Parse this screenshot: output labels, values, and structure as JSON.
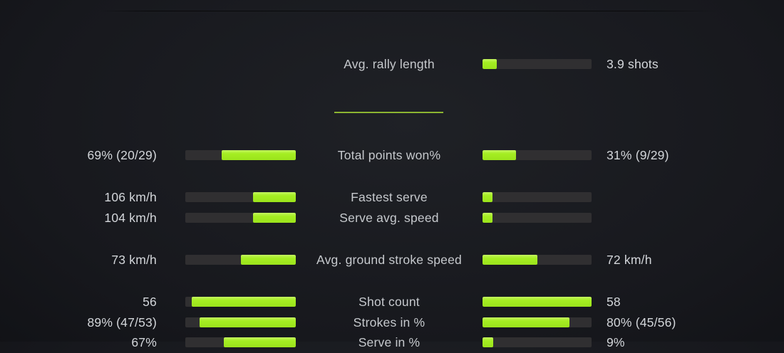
{
  "theme": {
    "accent_green": "#a5ee22",
    "bar_track": "#302f31",
    "divider_green": "#8cb531",
    "label_color": "#c6c9cd",
    "value_color": "#d3d6da",
    "background": "#17181d"
  },
  "chart_data": {
    "type": "bar",
    "subtype": "paired-horizontal-comparison",
    "title": "",
    "legend_position": "none",
    "grid": false,
    "rows": [
      {
        "label": "Avg. rally length",
        "left_value": null,
        "left_fill_pct": null,
        "right_fill_pct": 13,
        "right_value": "3.9 shots"
      },
      {
        "label": "Total points won%",
        "left_value": "69% (20/29)",
        "left_fill_pct": 67,
        "right_fill_pct": 31,
        "right_value": "31% (9/29)"
      },
      {
        "label": "Fastest serve",
        "left_value": "106 km/h",
        "left_fill_pct": 39,
        "right_fill_pct": 9,
        "right_value": ""
      },
      {
        "label": "Serve avg. speed",
        "left_value": "104 km/h",
        "left_fill_pct": 39,
        "right_fill_pct": 9,
        "right_value": ""
      },
      {
        "label": "Avg. ground stroke speed",
        "left_value": "73 km/h",
        "left_fill_pct": 50,
        "right_fill_pct": 50,
        "right_value": "72 km/h"
      },
      {
        "label": "Shot count",
        "left_value": "56",
        "left_fill_pct": 94,
        "right_fill_pct": 100,
        "right_value": "58"
      },
      {
        "label": "Strokes in %",
        "left_value": "89% (47/53)",
        "left_fill_pct": 87,
        "right_fill_pct": 80,
        "right_value": "80% (45/56)"
      },
      {
        "label": "Serve in %",
        "left_value": "67%",
        "left_fill_pct": 65,
        "right_fill_pct": 10,
        "right_value": "9%"
      }
    ]
  }
}
